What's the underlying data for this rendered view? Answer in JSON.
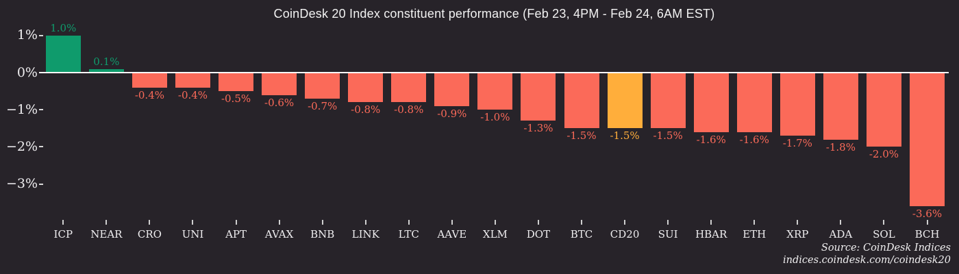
{
  "title": "CoinDesk 20 Index constituent performance (Feb 23, 4PM - Feb 24, 6AM EST)",
  "source": {
    "line1": "Source: CoinDesk Indices",
    "line2": "indices.coindesk.com/coindesk20"
  },
  "colors": {
    "background": "#272329",
    "positive": "#0f9b6c",
    "negative": "#fb6a59",
    "highlight": "#ffae3b",
    "text": "#efeef0",
    "axis_line": "#f8f8f8"
  },
  "chart_data": {
    "type": "bar",
    "title": "CoinDesk 20 Index constituent performance (Feb 23, 4PM - Feb 24, 6AM EST)",
    "categories": [
      "ICP",
      "NEAR",
      "CRO",
      "UNI",
      "APT",
      "AVAX",
      "BNB",
      "LINK",
      "LTC",
      "AAVE",
      "XLM",
      "DOT",
      "BTC",
      "CD20",
      "SUI",
      "HBAR",
      "ETH",
      "XRP",
      "ADA",
      "SOL",
      "BCH"
    ],
    "values": [
      1.0,
      0.1,
      -0.4,
      -0.4,
      -0.5,
      -0.6,
      -0.7,
      -0.8,
      -0.8,
      -0.9,
      -1.0,
      -1.3,
      -1.5,
      -1.5,
      -1.5,
      -1.6,
      -1.6,
      -1.7,
      -1.8,
      -2.0,
      -3.6
    ],
    "value_labels": [
      "1.0%",
      "0.1%",
      "-0.4%",
      "-0.4%",
      "-0.5%",
      "-0.6%",
      "-0.7%",
      "-0.8%",
      "-0.8%",
      "-0.9%",
      "-1.0%",
      "-1.3%",
      "-1.5%",
      "-1.5%",
      "-1.5%",
      "-1.6%",
      "-1.6%",
      "-1.7%",
      "-1.8%",
      "-2.0%",
      "-3.6%"
    ],
    "highlight_category": "CD20",
    "unit": "%",
    "ytick_values": [
      1,
      0,
      -1,
      -2,
      -3
    ],
    "ytick_labels": [
      "1%",
      "0%",
      "−1%",
      "−2%",
      "−3%"
    ],
    "ylim": [
      -3.9,
      1.3
    ],
    "grid": false,
    "legend": false
  }
}
